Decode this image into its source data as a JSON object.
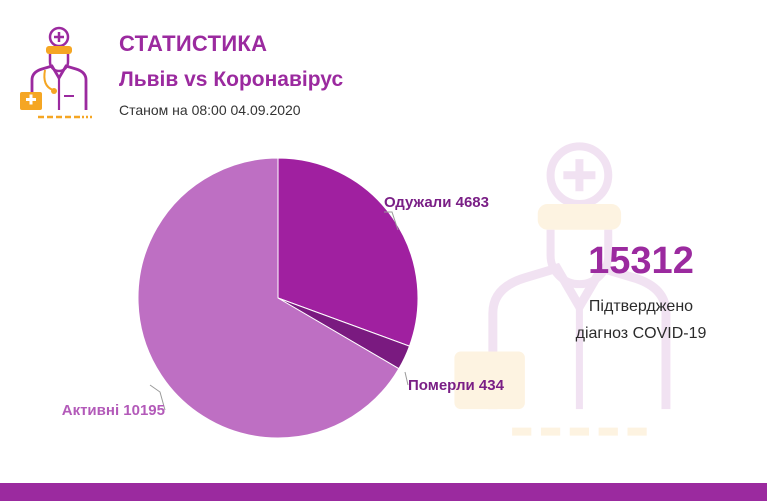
{
  "header": {
    "title": "СТАТИСТИКА",
    "subtitle": "Львів vs Коронавірус",
    "as_of": "Станом на 08:00 04.09.2020"
  },
  "summary": {
    "total": "15312",
    "label_line1": "Підтверджено",
    "label_line2": "діагноз COVID-19"
  },
  "colors": {
    "brand": "#9b2a9f",
    "recovered": "#a020a0",
    "deaths": "#7a1a80",
    "active": "#be6fc3",
    "label_recovered": "#7a1f86",
    "label_active": "#b35ab9",
    "icon_orange": "#f5a623"
  },
  "icons": {
    "logo": "doctor-icon",
    "watermark": "doctor-watermark-icon"
  },
  "chart_data": {
    "type": "pie",
    "title": "",
    "slices": [
      {
        "label": "Одужали",
        "value": 4683,
        "text": "Одужали 4683"
      },
      {
        "label": "Померли",
        "value": 434,
        "text": "Померли 434"
      },
      {
        "label": "Активні",
        "value": 10195,
        "text": "Активні 10195"
      }
    ]
  }
}
